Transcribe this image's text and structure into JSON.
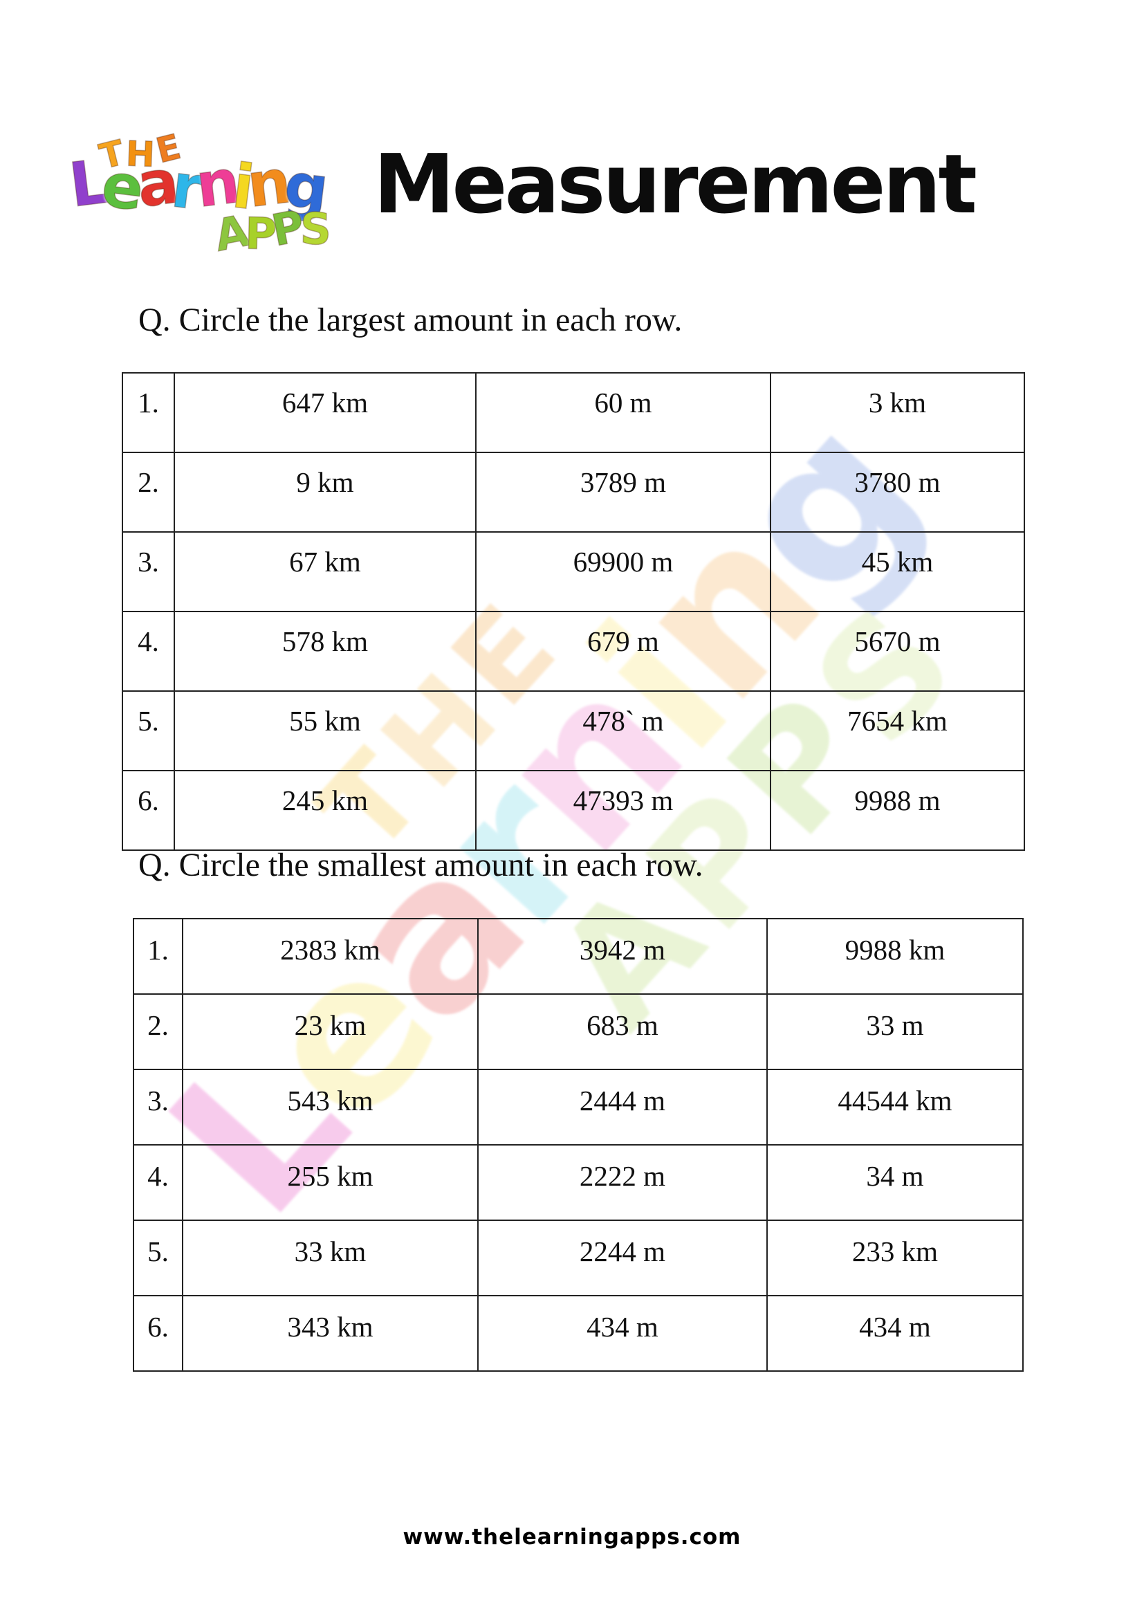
{
  "page": {
    "title": "Measurement",
    "footer_url": "www.thelearningapps.com"
  },
  "logo": {
    "the_letters": [
      {
        "ch": "T",
        "color": "#f6a41f"
      },
      {
        "ch": "H",
        "color": "#f29111"
      },
      {
        "ch": "E",
        "color": "#ee7d20"
      }
    ],
    "learning_letters": [
      {
        "ch": "L",
        "color": "#9040cc"
      },
      {
        "ch": "e",
        "color": "#5cbf3e"
      },
      {
        "ch": "a",
        "color": "#e2332d"
      },
      {
        "ch": "r",
        "color": "#2eb6e9"
      },
      {
        "ch": "n",
        "color": "#ee3d96"
      },
      {
        "ch": "i",
        "color": "#f4d821"
      },
      {
        "ch": "n",
        "color": "#f28c1c"
      },
      {
        "ch": "g",
        "color": "#2f6bd8"
      }
    ],
    "apps_letters": [
      {
        "ch": "A",
        "color": "#8dc63f"
      },
      {
        "ch": "P",
        "color": "#a7d129"
      },
      {
        "ch": "P",
        "color": "#7bbf3a"
      },
      {
        "ch": "S",
        "color": "#b5d733"
      }
    ]
  },
  "watermark": {
    "the_letters": [
      {
        "ch": "T",
        "color": "#fbe3a0"
      },
      {
        "ch": "H",
        "color": "#fadfae"
      },
      {
        "ch": "E",
        "color": "#f8d4a4"
      }
    ],
    "learning_letters": [
      {
        "ch": "L",
        "color": "#f2a2de"
      },
      {
        "ch": "e",
        "color": "#fbf1ac"
      },
      {
        "ch": "a",
        "color": "#f4aaaa"
      },
      {
        "ch": "r",
        "color": "#b4eaf2"
      },
      {
        "ch": "n",
        "color": "#f6bce4"
      },
      {
        "ch": "i",
        "color": "#fdf2b6"
      },
      {
        "ch": "n",
        "color": "#fad8ac"
      },
      {
        "ch": "g",
        "color": "#b4c6ee"
      }
    ],
    "apps_letters": [
      {
        "ch": "A",
        "color": "#d9ecb6"
      },
      {
        "ch": "P",
        "color": "#e1efc0"
      },
      {
        "ch": "P",
        "color": "#d4eab2"
      },
      {
        "ch": "S",
        "color": "#e4f1c4"
      }
    ]
  },
  "sections": [
    {
      "question": "Q. Circle the largest amount in each row.",
      "rows": [
        {
          "num": "1.",
          "col1": "647 km",
          "col2": "60 m",
          "col3": "3 km"
        },
        {
          "num": "2.",
          "col1": "9 km",
          "col2": "3789 m",
          "col3": "3780 m"
        },
        {
          "num": "3.",
          "col1": "67 km",
          "col2": "69900 m",
          "col3": "45 km"
        },
        {
          "num": "4.",
          "col1": "578 km",
          "col2": "679 m",
          "col3": "5670 m"
        },
        {
          "num": "5.",
          "col1": "55 km",
          "col2": "478` m",
          "col3": "7654 km"
        },
        {
          "num": "6.",
          "col1": "245 km",
          "col2": "47393 m",
          "col3": "9988 m"
        }
      ]
    },
    {
      "question": "Q. Circle the smallest amount in each row.",
      "rows": [
        {
          "num": "1.",
          "col1": "2383 km",
          "col2": "3942 m",
          "col3": "9988 km"
        },
        {
          "num": "2.",
          "col1": "23 km",
          "col2": "683 m",
          "col3": "33 m"
        },
        {
          "num": "3.",
          "col1": "543 km",
          "col2": "2444 m",
          "col3": "44544 km"
        },
        {
          "num": "4.",
          "col1": "255 km",
          "col2": "2222 m",
          "col3": "34 m"
        },
        {
          "num": "5.",
          "col1": "33 km",
          "col2": "2244 m",
          "col3": "233 km"
        },
        {
          "num": "6.",
          "col1": "343 km",
          "col2": "434 m",
          "col3": "434 m"
        }
      ]
    }
  ]
}
